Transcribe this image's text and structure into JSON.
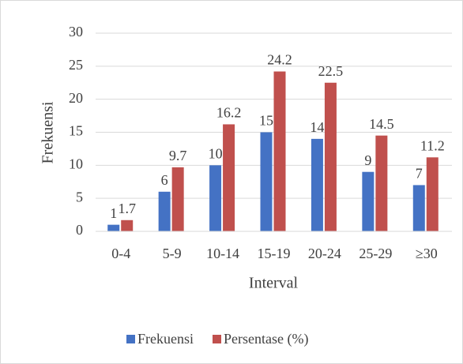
{
  "chart_data": {
    "type": "bar",
    "categories": [
      "0-4",
      "5-9",
      "10-14",
      "15-19",
      "20-24",
      "25-29",
      "≥30"
    ],
    "series": [
      {
        "name": "Frekuensi",
        "color": "#4472c4",
        "values": [
          1,
          6,
          10,
          15,
          14,
          9,
          7
        ]
      },
      {
        "name": "Persentase (%)",
        "color": "#c0504d",
        "values": [
          1.7,
          9.7,
          16.2,
          24.2,
          22.5,
          14.5,
          11.2
        ]
      }
    ],
    "x_label": "Interval",
    "y_label": "Frekuensi",
    "ylim": [
      0,
      30
    ],
    "yticks": [
      0,
      5,
      10,
      15,
      20,
      25,
      30
    ],
    "grid": true,
    "legend": "bottom"
  }
}
